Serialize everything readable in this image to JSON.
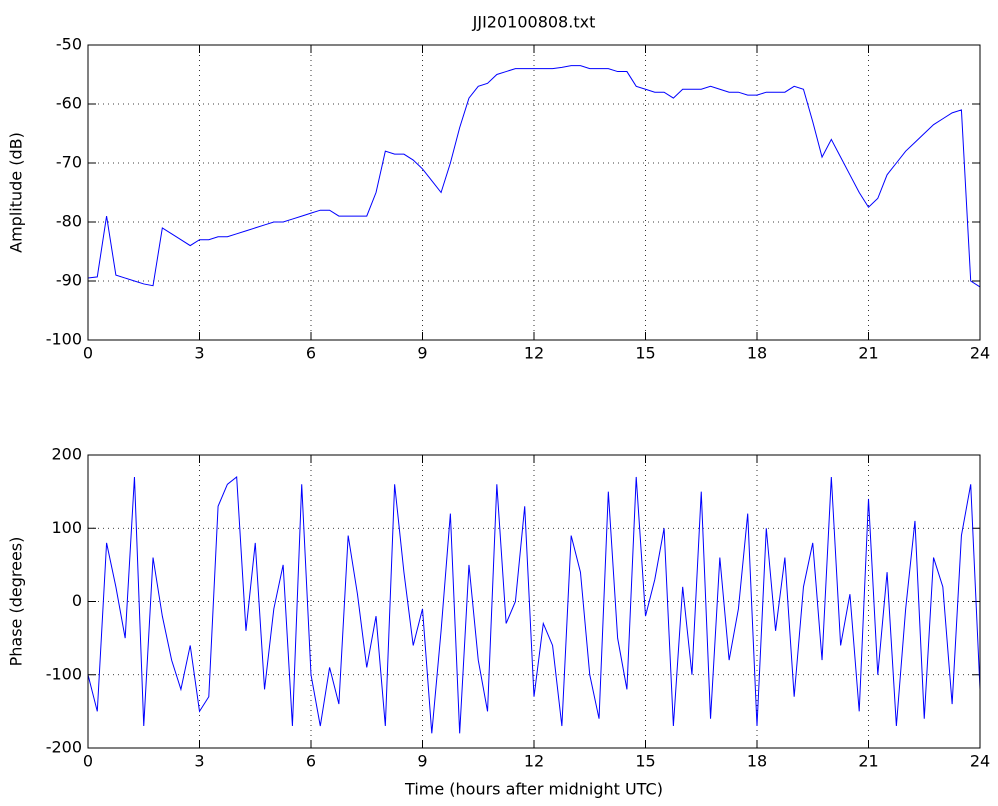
{
  "chart_data": [
    {
      "type": "line",
      "title": "JJI20100808.txt",
      "y_label": "Amplitude (dB)",
      "color": "#0000ff",
      "grid": true,
      "x": [
        0,
        0.25,
        0.5,
        0.75,
        1,
        1.25,
        1.5,
        1.75,
        2,
        2.25,
        2.5,
        2.75,
        3,
        3.25,
        3.5,
        3.75,
        4,
        4.25,
        4.5,
        4.75,
        5,
        5.25,
        5.5,
        5.75,
        6,
        6.25,
        6.5,
        6.75,
        7,
        7.25,
        7.5,
        7.75,
        8,
        8.25,
        8.5,
        8.75,
        9,
        9.25,
        9.5,
        9.75,
        10,
        10.25,
        10.5,
        10.75,
        11,
        11.25,
        11.5,
        11.75,
        12,
        12.25,
        12.5,
        12.75,
        13,
        13.25,
        13.5,
        13.75,
        14,
        14.25,
        14.5,
        14.75,
        15,
        15.25,
        15.5,
        15.75,
        16,
        16.25,
        16.5,
        16.75,
        17,
        17.25,
        17.5,
        17.75,
        18,
        18.25,
        18.5,
        18.75,
        19,
        19.25,
        19.5,
        19.75,
        20,
        20.25,
        20.5,
        20.75,
        21,
        21.25,
        21.5,
        21.75,
        22,
        22.25,
        22.5,
        22.75,
        23,
        23.25,
        23.5,
        23.75,
        24
      ],
      "values": [
        -89.5,
        -89.3,
        -79,
        -89,
        -89.5,
        -90,
        -90.5,
        -90.8,
        -81,
        -82,
        -83,
        -84,
        -83,
        -83,
        -82.5,
        -82.5,
        -82,
        -81.5,
        -81,
        -80.5,
        -80,
        -80,
        -79.5,
        -79,
        -78.5,
        -78,
        -78,
        -79,
        -79,
        -79,
        -79,
        -75,
        -68,
        -68.5,
        -68.5,
        -69.5,
        -71,
        -73,
        -75,
        -70,
        -64,
        -59,
        -57,
        -56.5,
        -55,
        -54.5,
        -54,
        -54,
        -54,
        -54,
        -54,
        -53.8,
        -53.5,
        -53.5,
        -54,
        -54,
        -54,
        -54.5,
        -54.5,
        -57,
        -57.5,
        -58,
        -58,
        -59,
        -57.5,
        -57.5,
        -57.5,
        -57,
        -57.5,
        -58,
        -58,
        -58.5,
        -58.5,
        -58,
        -58,
        -58,
        -57,
        -57.5,
        -63,
        -69,
        -66,
        -69,
        -72,
        -75,
        -77.5,
        -76,
        -72,
        -70,
        -68,
        -66.5,
        -65,
        -63.5,
        -62.5,
        -61.5,
        -61,
        -90,
        -91
      ],
      "xlim": [
        0,
        24
      ],
      "xticks": [
        0,
        3,
        6,
        9,
        12,
        15,
        18,
        21,
        24
      ],
      "ylim": [
        -100,
        -50
      ],
      "yticks": [
        -100,
        -90,
        -80,
        -70,
        -60,
        -50
      ]
    },
    {
      "type": "line",
      "x_label": "Time (hours after midnight UTC)",
      "y_label": "Phase (degrees)",
      "color": "#0000ff",
      "grid": true,
      "x": [
        0,
        0.25,
        0.5,
        0.75,
        1,
        1.25,
        1.5,
        1.75,
        2,
        2.25,
        2.5,
        2.75,
        3,
        3.25,
        3.5,
        3.75,
        4,
        4.25,
        4.5,
        4.75,
        5,
        5.25,
        5.5,
        5.75,
        6,
        6.25,
        6.5,
        6.75,
        7,
        7.25,
        7.5,
        7.75,
        8,
        8.25,
        8.5,
        8.75,
        9,
        9.25,
        9.5,
        9.75,
        10,
        10.25,
        10.5,
        10.75,
        11,
        11.25,
        11.5,
        11.75,
        12,
        12.25,
        12.5,
        12.75,
        13,
        13.25,
        13.5,
        13.75,
        14,
        14.25,
        14.5,
        14.75,
        15,
        15.25,
        15.5,
        15.75,
        16,
        16.25,
        16.5,
        16.75,
        17,
        17.25,
        17.5,
        17.75,
        18,
        18.25,
        18.5,
        18.75,
        19,
        19.25,
        19.5,
        19.75,
        20,
        20.25,
        20.5,
        20.75,
        21,
        21.25,
        21.5,
        21.75,
        22,
        22.25,
        22.5,
        22.75,
        23,
        23.25,
        23.5,
        23.75,
        24
      ],
      "values": [
        -100,
        -150,
        80,
        20,
        -50,
        170,
        -170,
        60,
        -20,
        -80,
        -120,
        -60,
        -150,
        -130,
        130,
        160,
        170,
        -40,
        80,
        -120,
        -10,
        50,
        -170,
        160,
        -100,
        -170,
        -90,
        -140,
        90,
        10,
        -90,
        -20,
        -170,
        160,
        40,
        -60,
        -10,
        -180,
        -40,
        120,
        -180,
        50,
        -80,
        -150,
        160,
        -30,
        0,
        130,
        -130,
        -30,
        -60,
        -170,
        90,
        40,
        -100,
        -160,
        150,
        -50,
        -120,
        170,
        -20,
        30,
        100,
        -170,
        20,
        -100,
        150,
        -160,
        60,
        -80,
        -10,
        120,
        -170,
        100,
        -40,
        60,
        -130,
        20,
        80,
        -80,
        170,
        -60,
        10,
        -150,
        140,
        -100,
        40,
        -170,
        -10,
        110,
        -160,
        60,
        20,
        -140,
        90,
        160,
        -120
      ],
      "xlim": [
        0,
        24
      ],
      "xticks": [
        0,
        3,
        6,
        9,
        12,
        15,
        18,
        21,
        24
      ],
      "ylim": [
        -200,
        200
      ],
      "yticks": [
        -200,
        -100,
        0,
        100,
        200
      ]
    }
  ]
}
